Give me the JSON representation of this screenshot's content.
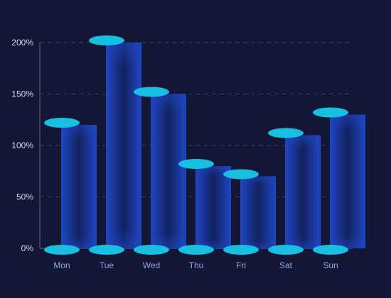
{
  "colors": {
    "background": "#131735",
    "bar_edge": "#1f46c4",
    "bar_center": "#12225f",
    "cap": "#19bfe0",
    "grid": "#3a4068",
    "axis": "#5a6494",
    "tick_text": "#d6dbf0",
    "category_text": "#8fa6e6"
  },
  "chart_data": {
    "type": "bar",
    "categories": [
      "Mon",
      "Tue",
      "Wed",
      "Thu",
      "Fri",
      "Sat",
      "Sun"
    ],
    "values": [
      120,
      200,
      150,
      80,
      70,
      110,
      130
    ],
    "ylim": [
      0,
      200
    ],
    "yticks": [
      0,
      50,
      100,
      150,
      200
    ],
    "ytick_labels": [
      "0%",
      "50%",
      "100%",
      "150%",
      "200%"
    ],
    "grid": true,
    "grid_style": "dashed",
    "legend": "none",
    "title": "",
    "xlabel": "",
    "ylabel": ""
  }
}
